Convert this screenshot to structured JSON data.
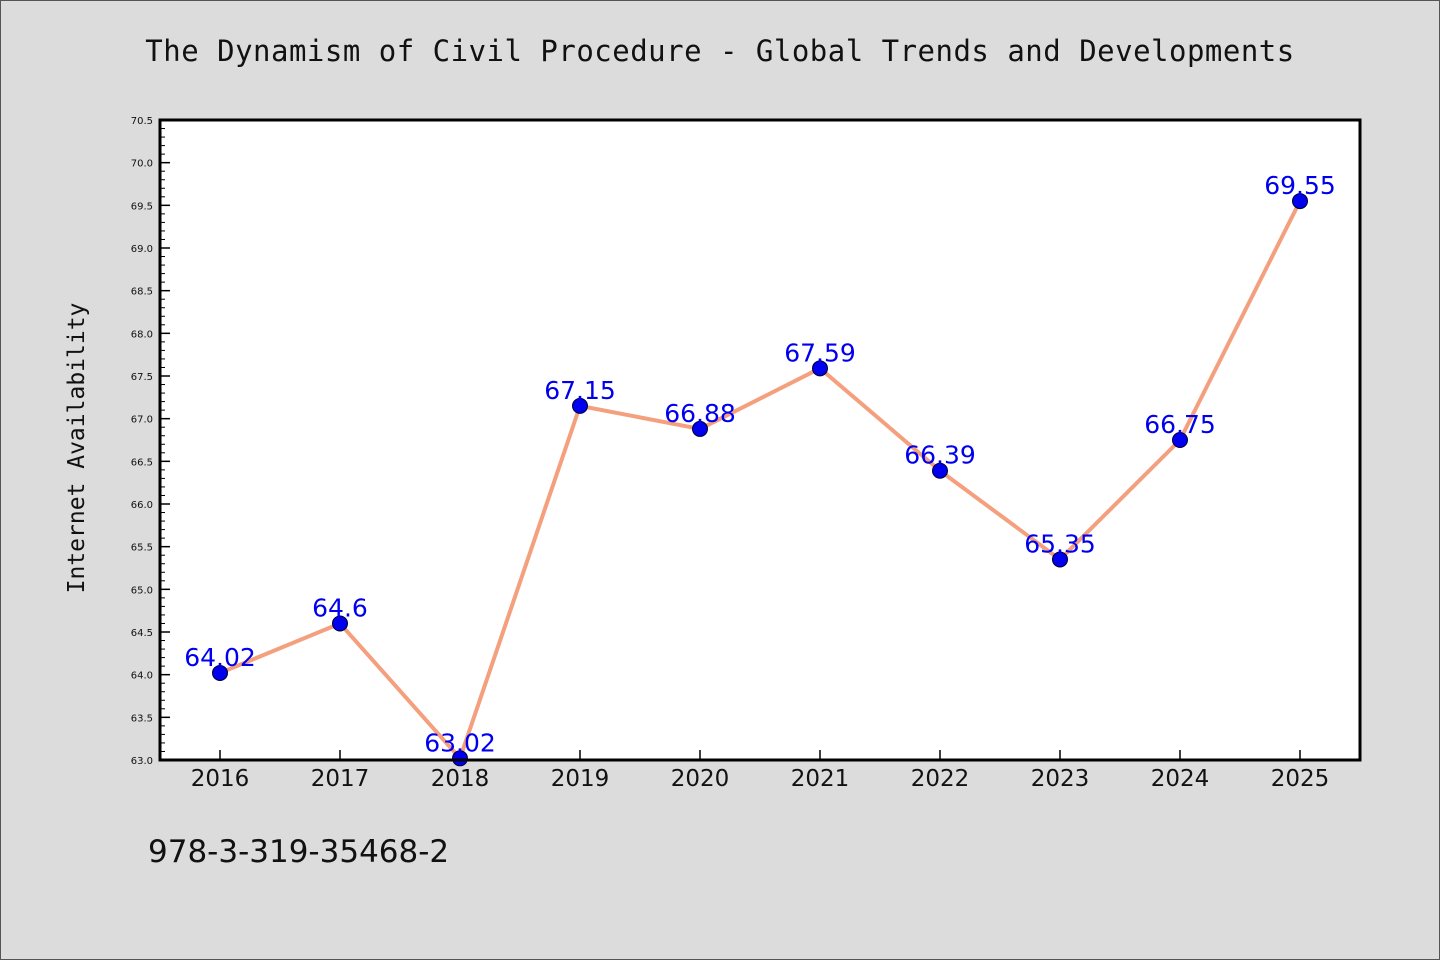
{
  "chart_data": {
    "type": "line",
    "title": "The Dynamism of Civil Procedure - Global Trends and Developments",
    "ylabel": "Internet Availability",
    "xlabel": "",
    "categories": [
      "2016",
      "2017",
      "2018",
      "2019",
      "2020",
      "2021",
      "2022",
      "2023",
      "2024",
      "2025"
    ],
    "series": [
      {
        "values": [
          64.02,
          64.6,
          63.02,
          67.15,
          66.88,
          67.59,
          66.39,
          65.35,
          66.75,
          69.55
        ],
        "value_labels": [
          "64.02",
          "64.6",
          "63.02",
          "67.15",
          "66.88",
          "67.59",
          "66.39",
          "65.35",
          "66.75",
          "69.55"
        ]
      }
    ],
    "ylim": [
      63.0,
      70.5
    ],
    "yticks": [
      "63.0",
      "63.5",
      "64.0",
      "64.5",
      "65.0",
      "65.5",
      "66.0",
      "66.5",
      "67.0",
      "67.5",
      "68.0",
      "68.5",
      "69.0",
      "69.5",
      "70.0",
      "70.5"
    ],
    "grid": false,
    "legend": "none",
    "colors": {
      "line": "#f4a07e",
      "marker": "#0000ee",
      "data_label": "#0000ee",
      "background": "#dcdcdc",
      "plot_background": "#ffffff"
    }
  },
  "caption": "978-3-319-35468-2"
}
